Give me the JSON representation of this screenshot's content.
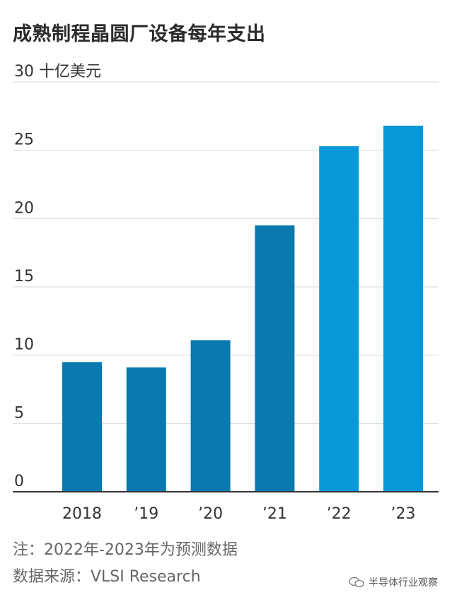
{
  "title": "成熟制程晶圆厂设备每年支出",
  "note": "注：2022年-2023年为预测数据",
  "source": "数据来源：VLSI Research",
  "watermark": "半导体行业观察",
  "chart_data": {
    "type": "bar",
    "title": "成熟制程晶圆厂设备每年支出",
    "ylabel_unit": "十亿美元",
    "categories": [
      "2018",
      "’19",
      "’20",
      "’21",
      "’22",
      "’23"
    ],
    "values": [
      9.5,
      9.1,
      11.1,
      19.5,
      25.3,
      26.8
    ],
    "forecast": [
      false,
      false,
      false,
      false,
      true,
      true
    ],
    "ylim": [
      0,
      30
    ],
    "yticks": [
      0,
      5,
      10,
      15,
      20,
      25,
      30
    ],
    "ytick_labels": [
      "0",
      "5",
      "10",
      "15",
      "20",
      "25",
      "30 十亿美元"
    ],
    "grid": true,
    "colors": {
      "actual": "#0a79ad",
      "forecast": "#0898d8",
      "grid": "#d9d9d9",
      "axis": "#333333"
    }
  }
}
